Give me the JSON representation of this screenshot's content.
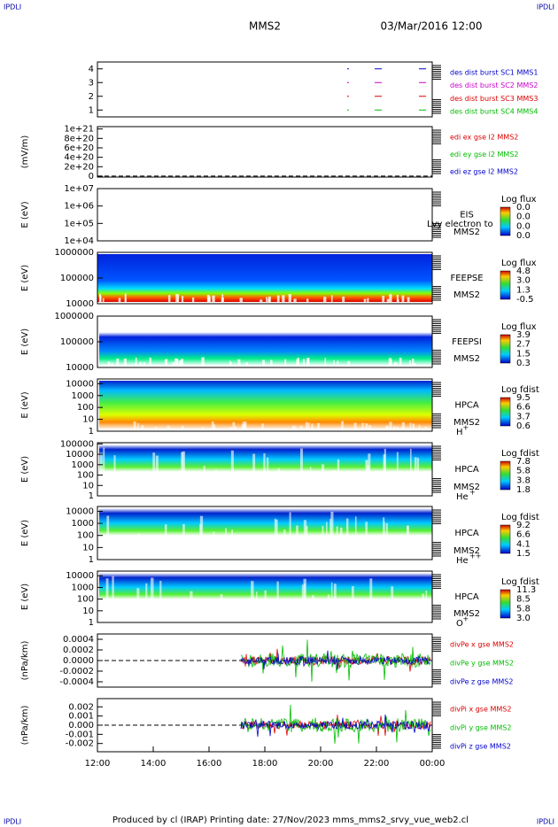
{
  "header": {
    "corner": "IPDLI",
    "title": "MMS2",
    "date": "03/Mar/2016 12:00"
  },
  "footer": "Produced by cl (IRAP)   Printing date: 27/Nov/2023   mms_mms2_srvy_vue_web2.cl",
  "xticks": [
    "12:00",
    "14:00",
    "16:00",
    "18:00",
    "20:00",
    "22:00",
    "00:00"
  ],
  "panels": [
    {
      "type": "burst",
      "log": false,
      "ylim": [
        0.5,
        4.5
      ],
      "yticks": [
        1,
        2,
        3,
        4
      ],
      "legend": [
        {
          "text": "des dist burst SC1 MMS1",
          "color": "#0000cc"
        },
        {
          "text": "des dist burst SC2 MMS2",
          "color": "#cc00cc"
        },
        {
          "text": "des dist burst SC3 MMS3",
          "color": "#dd0000"
        },
        {
          "text": "des dist burst SC4 MMS4",
          "color": "#00bb00"
        }
      ]
    },
    {
      "type": "line",
      "ylabel": "(mV/m)",
      "log": false,
      "ylim": [
        -2e+19,
        1.05e+21
      ],
      "yticks": [
        {
          "value": 1e+21,
          "label": "1e+21"
        },
        {
          "value": 8e+20,
          "label": "8e+20"
        },
        {
          "value": 6e+20,
          "label": "6e+20"
        },
        {
          "value": 4e+20,
          "label": "4e+20"
        },
        {
          "value": 2e+20,
          "label": "2e+20"
        },
        0
      ],
      "legend": [
        {
          "text": "edi ex gse l2 MMS2",
          "color": "#dd0000"
        },
        {
          "text": "edi ey gse l2 MMS2",
          "color": "#00bb00"
        },
        {
          "text": "edi ez gse l2 MMS2",
          "color": "#0000cc"
        }
      ]
    },
    {
      "type": "spectrogram",
      "ylabel": "E (eV)",
      "log": true,
      "ylim": [
        10000,
        10000000
      ],
      "yticks": [
        {
          "value": 10000000,
          "label": "1e+07"
        },
        {
          "value": 1000000,
          "label": "1e+06"
        },
        {
          "value": 100000,
          "label": "1e+05"
        },
        {
          "value": 10000,
          "label": "1e+04"
        }
      ],
      "labels": [
        "EIS",
        "MMS2"
      ],
      "overlay": "Lvy electron to",
      "colorbar": {
        "title": "Log flux",
        "labels": [
          "0.0",
          "0.0",
          "0.0",
          "0.0"
        ]
      }
    },
    {
      "type": "spectrogram",
      "ylabel": "E (eV)",
      "log": true,
      "ylim": [
        10000,
        1000000
      ],
      "yticks": [
        1000000,
        100000,
        10000
      ],
      "labels": [
        "FEEPSE",
        "MMS2"
      ],
      "colorbar": {
        "title": "Log flux",
        "labels": [
          "4.8",
          "3.0",
          "1.3",
          "-0.5"
        ]
      }
    },
    {
      "type": "spectrogram",
      "ylabel": "E (eV)",
      "log": true,
      "ylim": [
        10000,
        1000000
      ],
      "yticks": [
        1000000,
        100000,
        10000
      ],
      "labels": [
        "FEEPSI",
        "MMS2"
      ],
      "colorbar": {
        "title": "Log flux",
        "labels": [
          "3.9",
          "2.7",
          "1.5",
          "0.3"
        ]
      }
    },
    {
      "type": "spectrogram",
      "ylabel": "E (eV)",
      "log": true,
      "ylim": [
        1,
        25000
      ],
      "yticks": [
        10000,
        1000,
        100,
        10,
        1
      ],
      "labels": [
        "HPCA",
        "MMS2"
      ],
      "species": {
        "base": "H",
        "sup": "+"
      },
      "colorbar": {
        "title": "Log fdist",
        "labels": [
          "9.5",
          "6.6",
          "3.7",
          "0.6"
        ]
      }
    },
    {
      "type": "spectrogram",
      "ylabel": "E (eV)",
      "log": true,
      "ylim": [
        1,
        130000
      ],
      "yticks": [
        100000,
        10000,
        1000,
        100,
        10,
        1
      ],
      "labels": [
        "HPCA",
        "MMS2"
      ],
      "species": {
        "base": "He",
        "sup": "+"
      },
      "colorbar": {
        "title": "Log fdist",
        "labels": [
          "7.8",
          "5.8",
          "3.8",
          "1.8"
        ]
      }
    },
    {
      "type": "spectrogram",
      "ylabel": "E (eV)",
      "log": true,
      "ylim": [
        1,
        25000
      ],
      "yticks": [
        10000,
        1000,
        100,
        10,
        1
      ],
      "labels": [
        "HPCA",
        "MMS2"
      ],
      "species": {
        "base": "He",
        "sup": "++"
      },
      "colorbar": {
        "title": "Log fdist",
        "labels": [
          "9.2",
          "6.6",
          "4.1",
          "1.5"
        ]
      }
    },
    {
      "type": "spectrogram",
      "ylabel": "E (eV)",
      "log": true,
      "ylim": [
        1,
        25000
      ],
      "yticks": [
        10000,
        1000,
        100,
        10,
        1
      ],
      "labels": [
        "HPCA",
        "MMS2"
      ],
      "species": {
        "base": "O",
        "sup": "+"
      },
      "colorbar": {
        "title": "Log fdist",
        "labels": [
          "11.3",
          "8.5",
          "5.8",
          "3.0"
        ]
      }
    },
    {
      "type": "noise",
      "ylabel": "(nPa/km)",
      "log": false,
      "ylim": [
        -0.0005,
        0.0005
      ],
      "yticks": [
        0.0004,
        0.0002,
        {
          "value": 0,
          "label": "0.0000"
        },
        -0.0002,
        -0.0004
      ],
      "legend": [
        {
          "text": "divPe x gse MMS2",
          "color": "#dd0000"
        },
        {
          "text": "divPe y gse MMS2",
          "color": "#00bb00"
        },
        {
          "text": "divPe z gse MMS2",
          "color": "#0000cc"
        }
      ]
    },
    {
      "type": "noise",
      "ylabel": "(nPa/km)",
      "log": false,
      "ylim": [
        -0.0029,
        0.0029
      ],
      "yticks": [
        0.002,
        0.001,
        {
          "value": 0,
          "label": "0.000"
        },
        -0.001,
        -0.002
      ],
      "legend": [
        {
          "text": "divPi x gse MMS2",
          "color": "#dd0000"
        },
        {
          "text": "divPi y gse MMS2",
          "color": "#00bb00"
        },
        {
          "text": "divPi z gse MMS2",
          "color": "#0000cc"
        }
      ]
    }
  ]
}
